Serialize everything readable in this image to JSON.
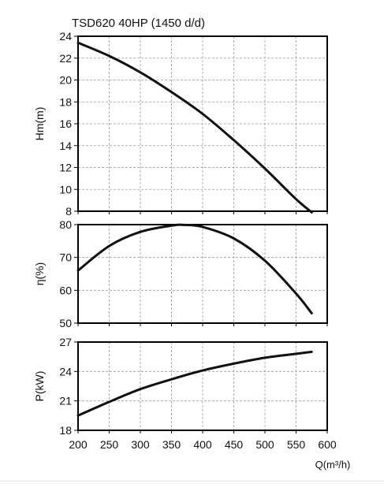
{
  "chart_data": {
    "type": "line",
    "title": "TSD620 40HP (1450 d/d)",
    "xlabel": "Q(m³/h)",
    "x_ticks": [
      200,
      250,
      300,
      350,
      400,
      450,
      500,
      550,
      600
    ],
    "xlim": [
      200,
      600
    ],
    "grid": true,
    "line_color": "#111111",
    "panels": [
      {
        "ylabel": "Hm(m)",
        "ylim": [
          8,
          24
        ],
        "y_ticks": [
          8,
          10,
          12,
          14,
          16,
          18,
          20,
          22,
          24
        ],
        "series": [
          {
            "x": [
              200,
              250,
              300,
              350,
              400,
              450,
              500,
              550,
              575
            ],
            "y": [
              23.4,
              22.2,
              20.7,
              18.9,
              16.9,
              14.5,
              11.9,
              9.1,
              7.9
            ]
          }
        ]
      },
      {
        "ylabel": "η(%)",
        "ylim": [
          50,
          80
        ],
        "y_ticks": [
          50,
          60,
          70,
          80
        ],
        "series": [
          {
            "x": [
              200,
              250,
              300,
              350,
              370,
              400,
              450,
              500,
              550,
              575
            ],
            "y": [
              66,
              73.5,
              77.8,
              79.7,
              79.9,
              79.3,
              75.8,
              69,
              59,
              53
            ]
          }
        ]
      },
      {
        "ylabel": "P(kW)",
        "ylim": [
          18,
          27
        ],
        "y_ticks": [
          18,
          21,
          24,
          27
        ],
        "series": [
          {
            "x": [
              200,
              250,
              300,
              350,
              400,
              450,
              500,
              550,
              575
            ],
            "y": [
              19.5,
              20.9,
              22.2,
              23.2,
              24.1,
              24.8,
              25.4,
              25.8,
              26.0
            ]
          }
        ]
      }
    ]
  }
}
